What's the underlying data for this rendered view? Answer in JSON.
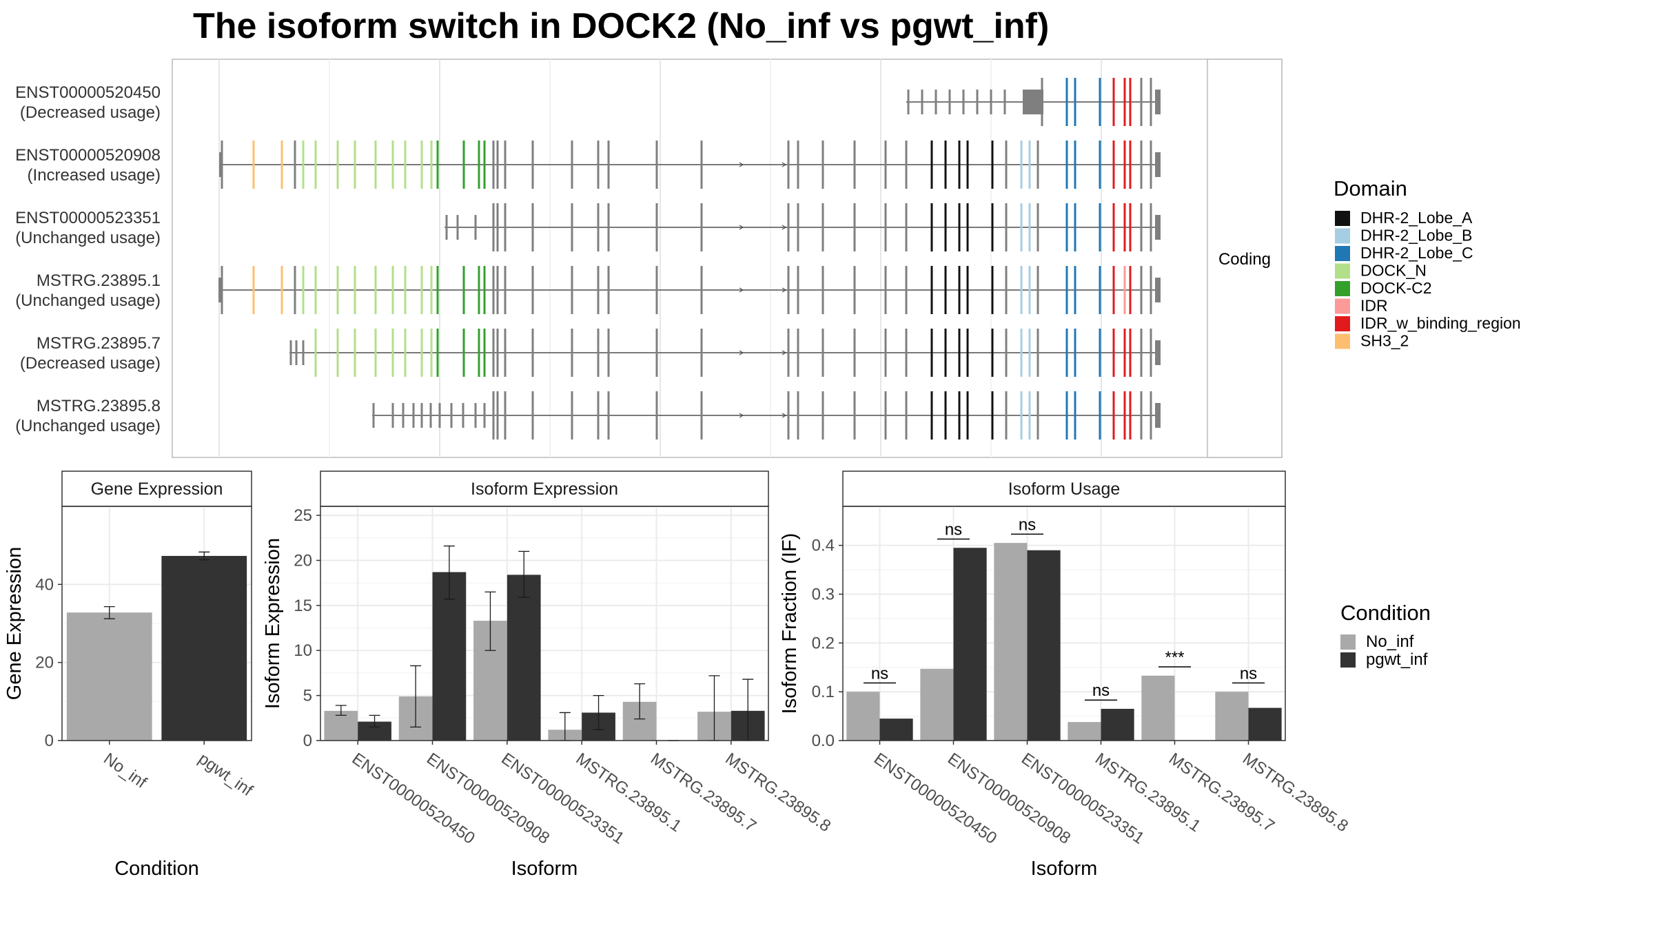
{
  "title": "The isoform switch in DOCK2 (No_inf vs pgwt_inf)",
  "colors": {
    "No_inf": "#a9a9a9",
    "pgwt_inf": "#333333",
    "exon_default": "#7f7f7f",
    "intron": "#4d4d4d",
    "DHR-2_Lobe_A": "#111111",
    "DHR-2_Lobe_B": "#a6cee3",
    "DHR-2_Lobe_C": "#1f78b4",
    "DOCK_N": "#b2df8a",
    "DOCK-C2": "#33a02c",
    "IDR": "#fb9a99",
    "IDR_w_binding_region": "#e31a1c",
    "SH3_2": "#fdbf6f"
  },
  "structure": {
    "strip_label": "Coding",
    "isoforms": [
      {
        "id": "ENST00000520450",
        "status": "(Decreased usage)"
      },
      {
        "id": "ENST00000520908",
        "status": "(Increased usage)"
      },
      {
        "id": "ENST00000523351",
        "status": "(Unchanged usage)"
      },
      {
        "id": "MSTRG.23895.1",
        "status": "(Unchanged usage)"
      },
      {
        "id": "MSTRG.23895.7",
        "status": "(Decreased usage)"
      },
      {
        "id": "MSTRG.23895.8",
        "status": "(Unchanged usage)"
      }
    ],
    "domain_legend": {
      "title": "Domain",
      "entries": [
        "DHR-2_Lobe_A",
        "DHR-2_Lobe_B",
        "DHR-2_Lobe_C",
        "DOCK_N",
        "DOCK-C2",
        "IDR",
        "IDR_w_binding_region",
        "SH3_2"
      ]
    }
  },
  "condition_legend": {
    "title": "Condition",
    "entries": [
      "No_inf",
      "pgwt_inf"
    ]
  },
  "chart_data": [
    {
      "type": "bar",
      "title": "Gene Expression",
      "xlabel": "Condition",
      "ylabel": "Gene Expression",
      "categories": [
        "No_inf",
        "pgwt_inf"
      ],
      "values": [
        32.8,
        47.3
      ],
      "errors": [
        [
          31.2,
          34.3
        ],
        [
          46.3,
          48.3
        ]
      ],
      "ylim": [
        0,
        60
      ],
      "yticks": [
        0,
        20,
        40
      ],
      "grid": true
    },
    {
      "type": "bar",
      "title": "Isoform Expression",
      "xlabel": "Isoform",
      "ylabel": "Isoform Expression",
      "categories": [
        "ENST00000520450",
        "ENST00000520908",
        "ENST00000523351",
        "MSTRG.23895.1",
        "MSTRG.23895.7",
        "MSTRG.23895.8"
      ],
      "series": [
        {
          "name": "No_inf",
          "values": [
            3.3,
            4.9,
            13.3,
            1.2,
            4.3,
            3.2
          ],
          "errors": [
            [
              2.8,
              3.9
            ],
            [
              1.5,
              8.3
            ],
            [
              10.0,
              16.5
            ],
            [
              0.0,
              3.1
            ],
            [
              2.4,
              6.3
            ],
            [
              0.0,
              7.2
            ]
          ]
        },
        {
          "name": "pgwt_inf",
          "values": [
            2.1,
            18.7,
            18.4,
            3.1,
            0.0,
            3.3
          ],
          "errors": [
            [
              1.5,
              2.8
            ],
            [
              15.7,
              21.6
            ],
            [
              15.9,
              21.0
            ],
            [
              1.2,
              5.0
            ],
            [
              0.0,
              0.0
            ],
            [
              0.0,
              6.8
            ]
          ]
        }
      ],
      "ylim": [
        0,
        26
      ],
      "yticks": [
        0,
        5,
        10,
        15,
        20,
        25
      ],
      "grid": true
    },
    {
      "type": "bar",
      "title": "Isoform Usage",
      "xlabel": "Isoform",
      "ylabel": "Isoform Fraction (IF)",
      "categories": [
        "ENST00000520450",
        "ENST00000520908",
        "ENST00000523351",
        "MSTRG.23895.1",
        "MSTRG.23895.7",
        "MSTRG.23895.8"
      ],
      "series": [
        {
          "name": "No_inf",
          "values": [
            0.1,
            0.147,
            0.405,
            0.038,
            0.133,
            0.1
          ]
        },
        {
          "name": "pgwt_inf",
          "values": [
            0.045,
            0.395,
            0.39,
            0.065,
            0.0,
            0.067
          ]
        }
      ],
      "significance": [
        "ns",
        "ns",
        "ns",
        "ns",
        "***",
        "ns"
      ],
      "ylim": [
        0,
        0.48
      ],
      "yticks": [
        0.0,
        0.1,
        0.2,
        0.3,
        0.4
      ],
      "grid": true
    }
  ]
}
